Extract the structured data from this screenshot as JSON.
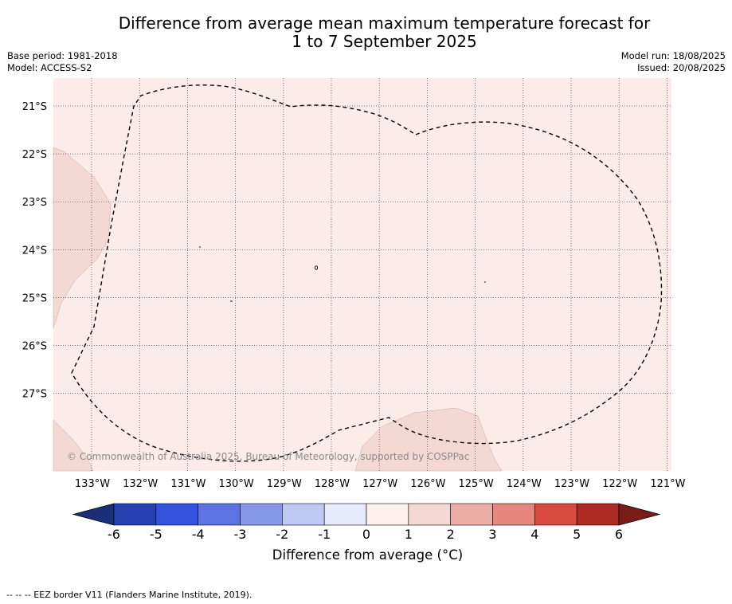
{
  "title_line1": "Difference from average mean maximum temperature forecast for",
  "title_line2": "1 to 7 September 2025",
  "base_period": "Base period: 1981-2018",
  "model": "Model: ACCESS-S2",
  "model_run": "Model run: 18/08/2025",
  "issued": "Issued: 20/08/2025",
  "copyright": "© Commonwealth of Australia 2025, Bureau of Meteorology, supported by COSPPac",
  "map": {
    "background_color": "#fbebe9",
    "warm_region_color": "#f4d8d3",
    "lat_labels": [
      "21°S",
      "22°S",
      "23°S",
      "24°S",
      "25°S",
      "26°S",
      "27°S"
    ],
    "lon_labels": [
      "133°W",
      "132°W",
      "131°W",
      "130°W",
      "129°W",
      "128°W",
      "127°W",
      "126°W",
      "125°W",
      "124°W",
      "123°W",
      "122°W",
      "121°W"
    ]
  },
  "colorbar": {
    "ticks": [
      "-6",
      "-5",
      "-4",
      "-3",
      "-2",
      "-1",
      "0",
      "1",
      "2",
      "3",
      "4",
      "5",
      "6"
    ],
    "colors": [
      "#2540b0",
      "#3352dd",
      "#5c73e3",
      "#8798eb",
      "#c0c8f4",
      "#e8ebfb",
      "#fdf0ee",
      "#f4d8d3",
      "#ebaea6",
      "#e6867d",
      "#d84a3f",
      "#ac2b22"
    ],
    "under_color": "#1b2f78",
    "over_color": "#7a1c17",
    "label": "Difference from average (°C)"
  },
  "footnote": "-- -- -- EEZ border V11 (Flanders Marine Institute, 2019)."
}
